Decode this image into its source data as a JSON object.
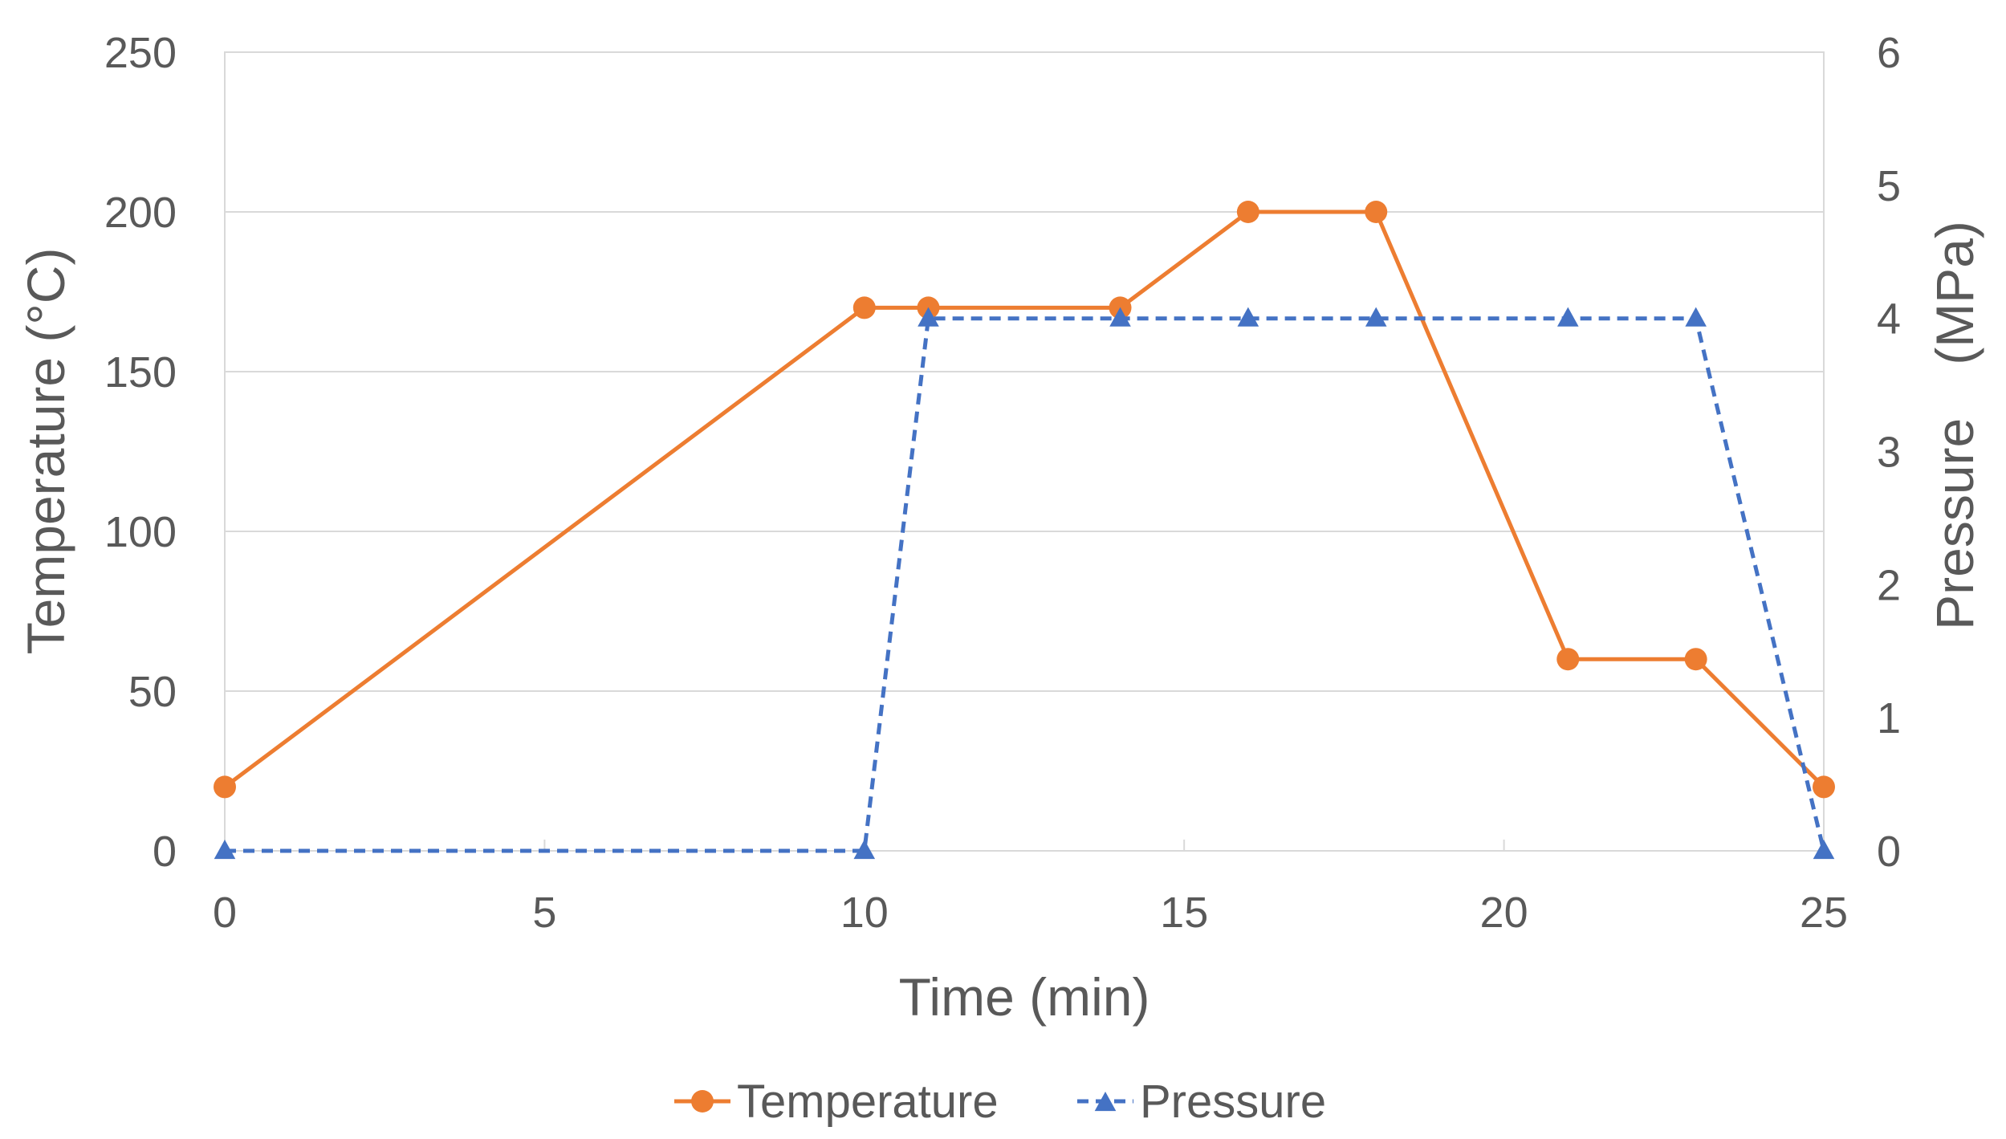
{
  "chart_data": {
    "type": "line",
    "title": "",
    "xlabel": "Time (min)",
    "ylabel": "Temperature (°C)",
    "y2label": "Pressure　(MPa)",
    "xlim": [
      0,
      25
    ],
    "ylim": [
      0,
      250
    ],
    "y2lim": [
      0,
      6
    ],
    "x_ticks": [
      "0",
      "5",
      "10",
      "15",
      "20",
      "25"
    ],
    "y_ticks": [
      "0",
      "50",
      "100",
      "150",
      "200",
      "250"
    ],
    "y2_ticks": [
      "0",
      "1",
      "2",
      "3",
      "4",
      "5",
      "6"
    ],
    "grid": true,
    "legend_position": "bottom",
    "series": [
      {
        "name": "Temperature",
        "axis": "left",
        "color": "#ED7D31",
        "line_style": "solid",
        "marker": "circle",
        "x": [
          0,
          10,
          11,
          14,
          16,
          18,
          21,
          23,
          25
        ],
        "y": [
          20,
          170,
          170,
          170,
          200,
          200,
          60,
          60,
          20
        ]
      },
      {
        "name": "Pressure",
        "axis": "right",
        "color": "#4472C4",
        "line_style": "dashed",
        "marker": "triangle",
        "x": [
          0,
          10,
          11,
          14,
          16,
          18,
          21,
          23,
          25
        ],
        "y": [
          0,
          0,
          4,
          4,
          4,
          4,
          4,
          4,
          0
        ]
      }
    ]
  }
}
